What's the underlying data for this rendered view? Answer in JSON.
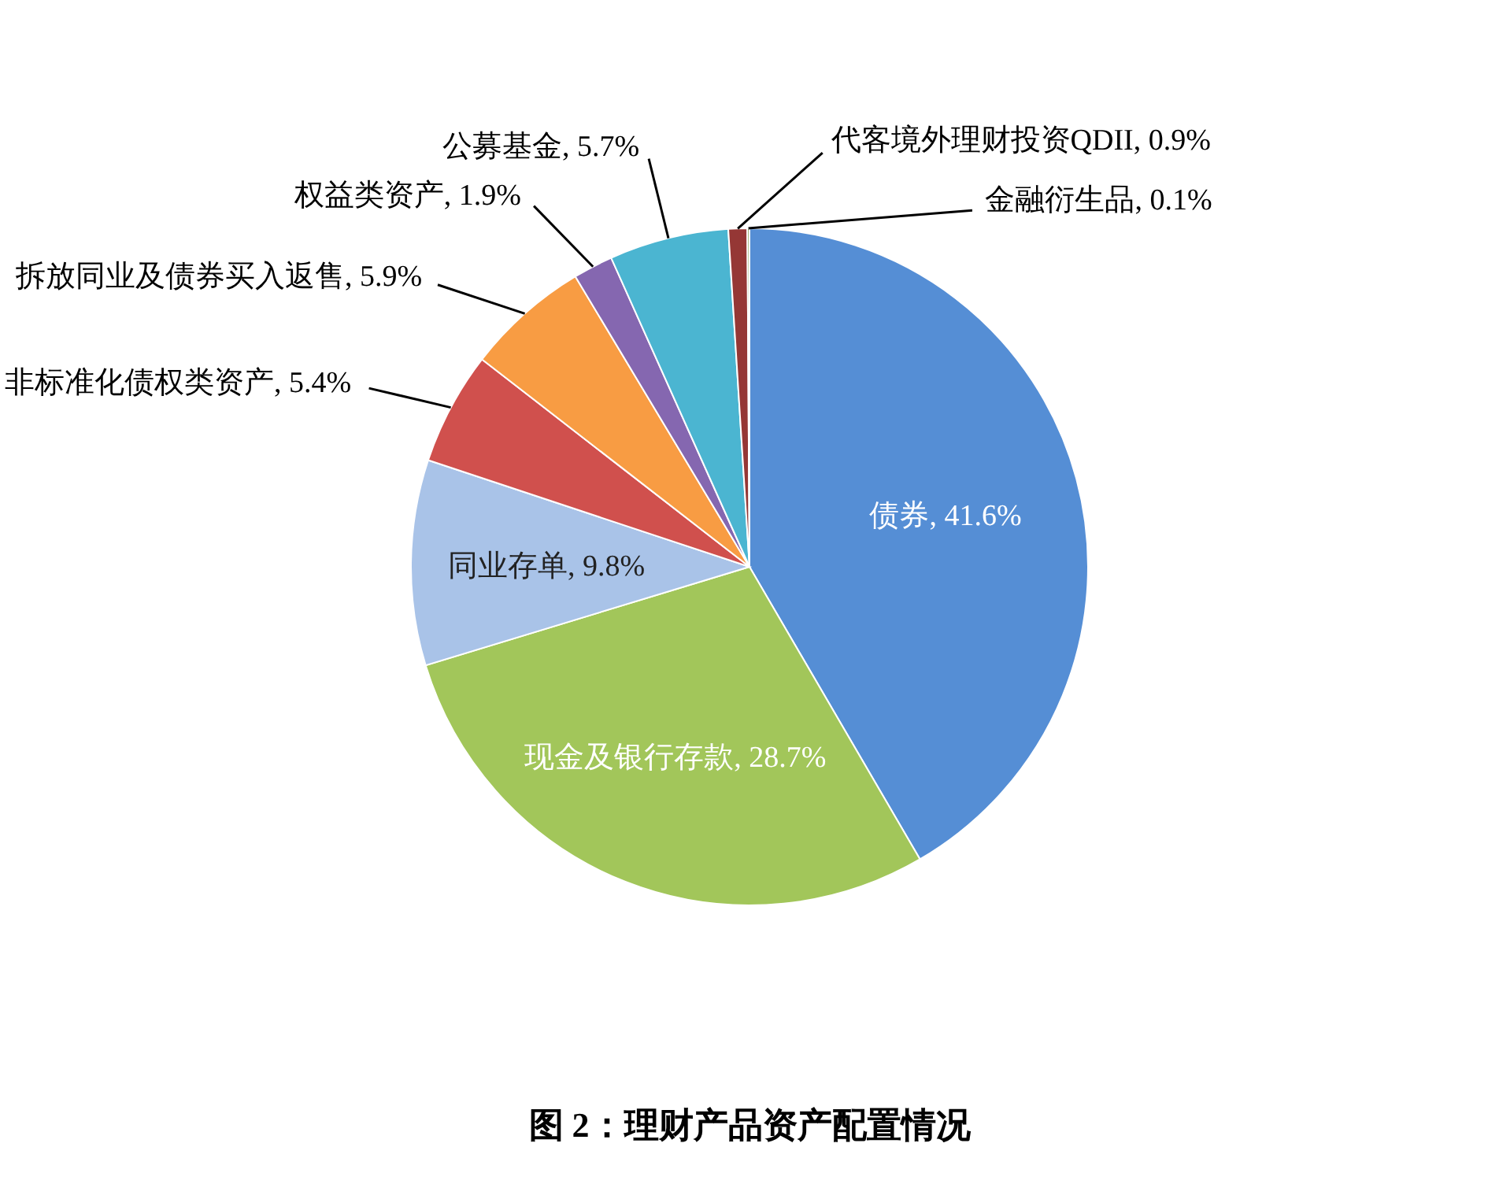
{
  "chart_data": {
    "type": "pie",
    "title": "图 2：理财产品资产配置情况",
    "categories": [
      "债券",
      "现金及银行存款",
      "同业存单",
      "非标准化债权类资产",
      "拆放同业及债券买入返售",
      "权益类资产",
      "公募基金",
      "代客境外理财投资QDII",
      "金融衍生品"
    ],
    "values": [
      41.6,
      28.7,
      9.8,
      5.4,
      5.9,
      1.9,
      5.7,
      0.9,
      0.1
    ],
    "value_labels": [
      ", 41.6%",
      ", 28.7%",
      ", 9.8%",
      ", 5.4%",
      ", 5.9%",
      ", 1.9%",
      ", 5.7%",
      ", 0.9%",
      ", 0.1%"
    ],
    "colors": [
      "#558ed5",
      "#a2c65a",
      "#a9c3e8",
      "#d0504d",
      "#f89c43",
      "#8567b0",
      "#4bb5d1",
      "#953735",
      "#77933c"
    ]
  }
}
